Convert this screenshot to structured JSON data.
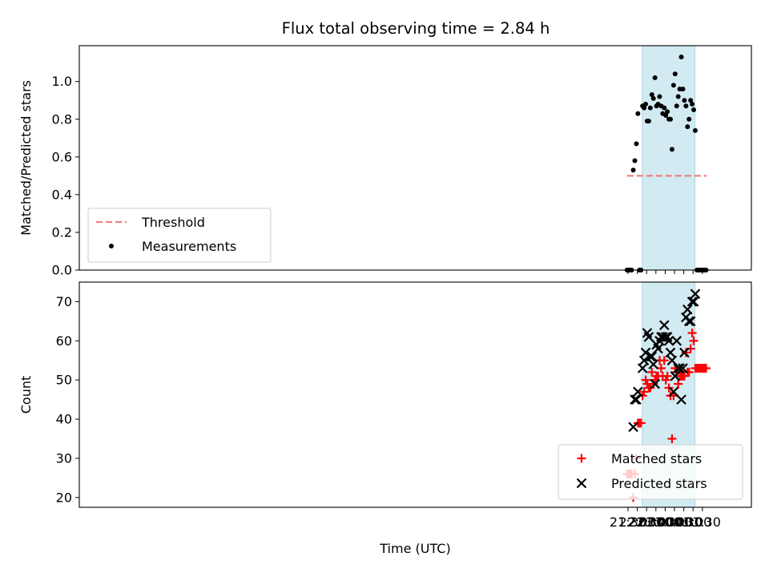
{
  "chart_data": [
    {
      "type": "scatter",
      "title": "Flux total observing time = 2.84 h",
      "ylabel": "Matched/Predicted stars",
      "xlabel": "",
      "ylim": [
        0,
        1.19
      ],
      "yticks": [
        "0.0",
        "0.2",
        "0.4",
        "0.6",
        "0.8",
        "1.0"
      ],
      "ytick_values": [
        0,
        0.2,
        0.4,
        0.6,
        0.8,
        1.0
      ],
      "shaded_span": [
        "22:16",
        "01:06"
      ],
      "shade_color": "#add8e6",
      "legend": {
        "position": "lower-left",
        "entries": [
          "Threshold",
          "Measurements"
        ]
      },
      "threshold": {
        "name": "Threshold",
        "value": 0.5,
        "x_range": [
          "21:27",
          "01:44"
        ],
        "style": "dashed",
        "color": "#f08080"
      },
      "series": [
        {
          "name": "Measurements",
          "color": "#000000",
          "marker": "dot",
          "x": [
            "21:27",
            "21:32",
            "21:37",
            "21:42",
            "21:47",
            "21:52",
            "21:57",
            "22:02",
            "22:07",
            "22:12",
            "22:17",
            "22:22",
            "22:27",
            "22:32",
            "22:37",
            "22:42",
            "22:47",
            "22:52",
            "22:57",
            "23:02",
            "23:07",
            "23:12",
            "23:17",
            "23:22",
            "23:27",
            "23:32",
            "23:37",
            "23:42",
            "23:47",
            "23:52",
            "23:57",
            "00:02",
            "00:07",
            "00:12",
            "00:17",
            "00:22",
            "00:27",
            "00:32",
            "00:37",
            "00:42",
            "00:47",
            "00:52",
            "00:57",
            "01:02",
            "01:07",
            "01:12",
            "01:17",
            "01:22",
            "01:27",
            "01:32",
            "01:37",
            "01:42"
          ],
          "values": [
            0,
            0,
            0,
            0,
            0.53,
            0.58,
            0.67,
            0.83,
            0,
            0,
            0.87,
            0.86,
            0.88,
            0.79,
            0.79,
            0.86,
            0.93,
            0.91,
            1.02,
            0.87,
            0.88,
            0.92,
            0.87,
            0.83,
            0.86,
            0.82,
            0.84,
            0.8,
            0.8,
            0.64,
            0.98,
            1.04,
            0.87,
            0.92,
            0.96,
            1.13,
            0.96,
            0.9,
            0.87,
            0.76,
            0.8,
            0.9,
            0.88,
            0.85,
            0.74,
            0,
            0,
            0,
            0,
            0,
            0,
            0
          ]
        }
      ]
    },
    {
      "type": "scatter",
      "title": "",
      "ylabel": "Count",
      "xlabel": "Time (UTC)",
      "ylim": [
        17.5,
        75
      ],
      "yticks": [
        "20",
        "30",
        "40",
        "50",
        "60",
        "70"
      ],
      "ytick_values": [
        20,
        30,
        40,
        50,
        60,
        70
      ],
      "xticks": [
        "21:30",
        "22:00",
        "22:30",
        "23:00",
        "23:30",
        "00:00",
        "00:30",
        "01:00",
        "01:30"
      ],
      "shaded_span": [
        "22:16",
        "01:06"
      ],
      "shade_color": "#add8e6",
      "legend": {
        "position": "lower-right",
        "entries": [
          "Matched stars",
          "Predicted stars"
        ]
      },
      "series": [
        {
          "name": "Matched stars",
          "color": "#ff0000",
          "marker": "plus",
          "x": [
            "21:27",
            "21:32",
            "21:37",
            "21:42",
            "21:47",
            "21:52",
            "21:57",
            "22:02",
            "22:07",
            "22:12",
            "22:17",
            "22:22",
            "22:27",
            "22:32",
            "22:37",
            "22:42",
            "22:47",
            "22:52",
            "22:57",
            "23:02",
            "23:07",
            "23:12",
            "23:17",
            "23:22",
            "23:27",
            "23:32",
            "23:37",
            "23:42",
            "23:47",
            "23:52",
            "23:57",
            "00:02",
            "00:07",
            "00:12",
            "00:17",
            "00:22",
            "00:27",
            "00:32",
            "00:37",
            "00:42",
            "00:47",
            "00:52",
            "00:57",
            "01:02",
            "01:07",
            "01:12",
            "01:17",
            "01:22",
            "01:27",
            "01:32",
            "01:37",
            "01:42"
          ],
          "values": [
            26,
            26,
            26,
            26,
            20,
            26,
            30,
            39,
            39,
            39,
            46,
            47,
            50,
            49,
            48,
            48,
            52,
            49,
            50,
            51,
            51,
            55,
            53,
            51,
            55,
            50,
            51,
            48,
            46,
            35,
            46,
            53,
            52,
            49,
            51,
            51,
            51,
            51,
            57,
            52,
            52,
            58,
            62,
            60,
            53,
            53,
            53,
            53,
            53,
            53,
            53,
            53
          ]
        },
        {
          "name": "Predicted stars",
          "color": "#000000",
          "marker": "x",
          "x": [
            "21:47",
            "21:52",
            "21:57",
            "22:02",
            "22:17",
            "22:22",
            "22:27",
            "22:32",
            "22:37",
            "22:42",
            "22:47",
            "22:52",
            "22:57",
            "23:02",
            "23:07",
            "23:12",
            "23:17",
            "23:22",
            "23:27",
            "23:32",
            "23:37",
            "23:42",
            "23:47",
            "23:52",
            "23:57",
            "00:02",
            "00:07",
            "00:12",
            "00:17",
            "00:22",
            "00:27",
            "00:32",
            "00:37",
            "00:42",
            "00:47",
            "00:52",
            "00:57",
            "01:02",
            "01:07"
          ],
          "values": [
            38,
            45,
            45,
            47,
            53,
            55,
            57,
            62,
            61,
            56,
            56,
            54,
            49,
            59,
            58,
            60,
            61,
            61,
            64,
            61,
            61,
            60,
            57,
            55,
            47,
            51,
            60,
            53,
            53,
            45,
            53,
            57,
            66,
            68,
            65,
            65,
            70,
            70,
            72
          ]
        }
      ]
    }
  ]
}
